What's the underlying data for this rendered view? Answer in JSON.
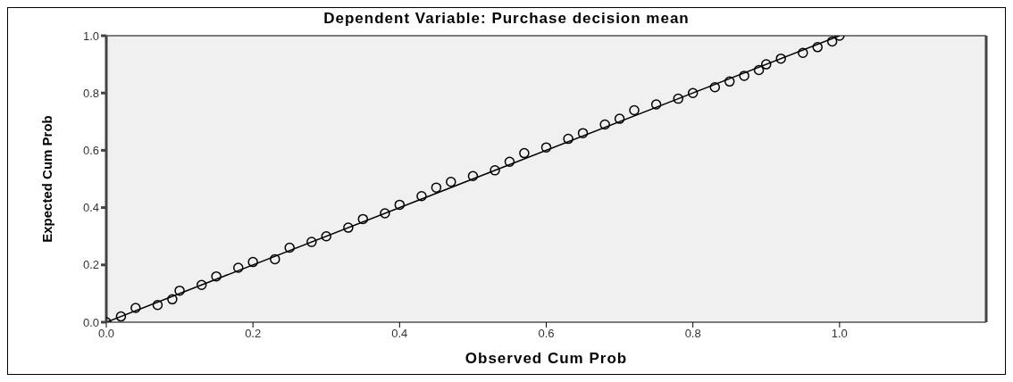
{
  "chart_data": {
    "type": "scatter",
    "title": "Dependent Variable: Purchase decision mean",
    "xlabel": "Observed Cum Prob",
    "ylabel": "Expected Cum Prob",
    "xlim": [
      0,
      1.2
    ],
    "ylim": [
      0,
      1
    ],
    "xticks": [
      {
        "value": 0,
        "label": "0.0"
      },
      {
        "value": 0.2,
        "label": "0.2"
      },
      {
        "value": 0.4,
        "label": "0.4"
      },
      {
        "value": 0.6,
        "label": "0.6"
      },
      {
        "value": 0.8,
        "label": "0.8"
      },
      {
        "value": 1,
        "label": "1.0"
      }
    ],
    "yticks": [
      {
        "value": 0,
        "label": "0.0"
      },
      {
        "value": 0.2,
        "label": "0.2"
      },
      {
        "value": 0.4,
        "label": "0.4"
      },
      {
        "value": 0.6,
        "label": "0.6"
      },
      {
        "value": 0.8,
        "label": "0.8"
      },
      {
        "value": 1,
        "label": "1.0"
      }
    ],
    "series": [
      {
        "type": "scatter",
        "color": "#000000",
        "marker": "circle",
        "x": [
          0,
          0.02,
          0.04,
          0.07,
          0.09,
          0.1,
          0.13,
          0.15,
          0.18,
          0.2,
          0.23,
          0.25,
          0.28,
          0.3,
          0.33,
          0.35,
          0.38,
          0.4,
          0.43,
          0.45,
          0.47,
          0.5,
          0.53,
          0.55,
          0.57,
          0.6,
          0.63,
          0.65,
          0.68,
          0.7,
          0.72,
          0.75,
          0.78,
          0.8,
          0.83,
          0.85,
          0.87,
          0.89,
          0.9,
          0.92,
          0.95,
          0.97,
          0.99,
          1
        ],
        "values": [
          0,
          0.02,
          0.05,
          0.06,
          0.08,
          0.11,
          0.13,
          0.16,
          0.19,
          0.21,
          0.22,
          0.26,
          0.28,
          0.3,
          0.33,
          0.36,
          0.38,
          0.41,
          0.44,
          0.47,
          0.49,
          0.51,
          0.53,
          0.56,
          0.59,
          0.61,
          0.64,
          0.66,
          0.69,
          0.71,
          0.74,
          0.76,
          0.78,
          0.8,
          0.82,
          0.84,
          0.86,
          0.88,
          0.9,
          0.92,
          0.94,
          0.96,
          0.98,
          1
        ]
      },
      {
        "type": "line",
        "color": "#000000",
        "x": [
          0,
          1
        ],
        "values": [
          0,
          1
        ]
      }
    ]
  }
}
